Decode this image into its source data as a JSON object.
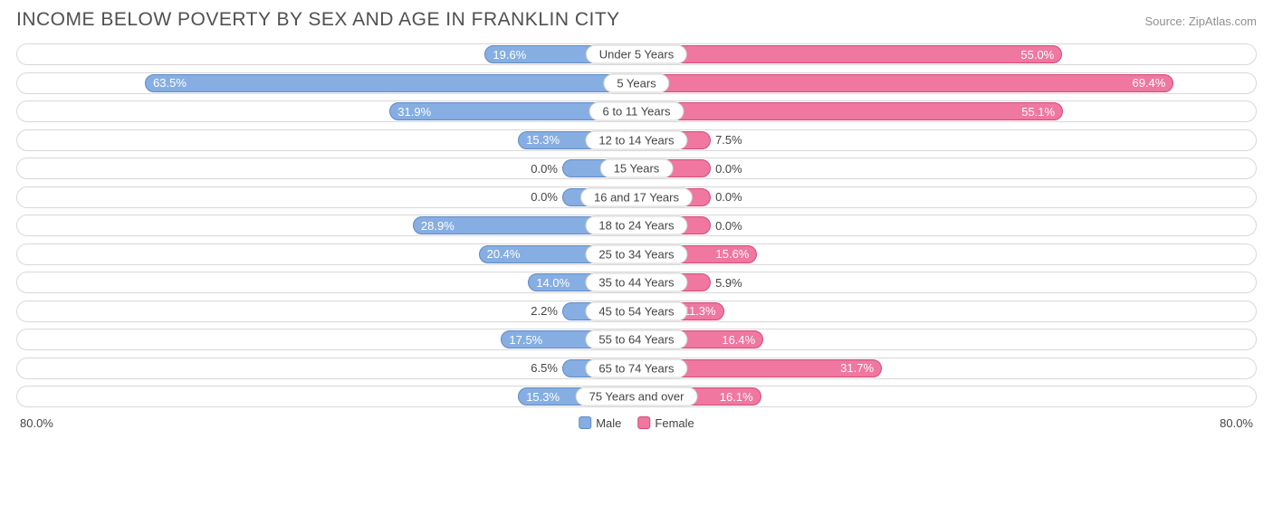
{
  "title": "INCOME BELOW POVERTY BY SEX AND AGE IN FRANKLIN CITY",
  "source": "Source: ZipAtlas.com",
  "axis_max": 80.0,
  "axis_label_left": "80.0%",
  "axis_label_right": "80.0%",
  "legend": {
    "male": "Male",
    "female": "Female"
  },
  "colors": {
    "male_fill": "#86aee2",
    "male_border": "#5f89c4",
    "female_fill": "#ef77a0",
    "female_border": "#d4497b",
    "track_border": "#d8d8d8",
    "text": "#444444",
    "title_text": "#505050",
    "source_text": "#909090",
    "bg": "#ffffff"
  },
  "min_bar_pct": 12.0,
  "inside_threshold": 10.0,
  "rows": [
    {
      "category": "Under 5 Years",
      "male": 19.6,
      "female": 55.0
    },
    {
      "category": "5 Years",
      "male": 63.5,
      "female": 69.4
    },
    {
      "category": "6 to 11 Years",
      "male": 31.9,
      "female": 55.1
    },
    {
      "category": "12 to 14 Years",
      "male": 15.3,
      "female": 7.5
    },
    {
      "category": "15 Years",
      "male": 0.0,
      "female": 0.0
    },
    {
      "category": "16 and 17 Years",
      "male": 0.0,
      "female": 0.0
    },
    {
      "category": "18 to 24 Years",
      "male": 28.9,
      "female": 0.0
    },
    {
      "category": "25 to 34 Years",
      "male": 20.4,
      "female": 15.6
    },
    {
      "category": "35 to 44 Years",
      "male": 14.0,
      "female": 5.9
    },
    {
      "category": "45 to 54 Years",
      "male": 2.2,
      "female": 11.3
    },
    {
      "category": "55 to 64 Years",
      "male": 17.5,
      "female": 16.4
    },
    {
      "category": "65 to 74 Years",
      "male": 6.5,
      "female": 31.7
    },
    {
      "category": "75 Years and over",
      "male": 15.3,
      "female": 16.1
    }
  ]
}
